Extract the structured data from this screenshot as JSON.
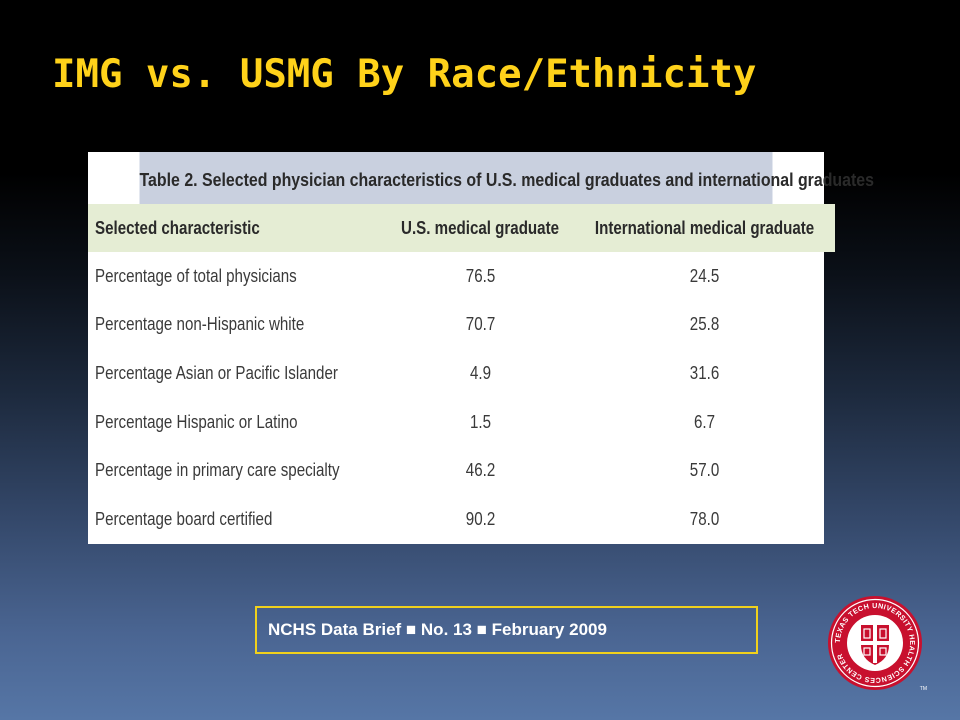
{
  "slide": {
    "title": "IMG vs. USMG By Race/Ethnicity",
    "source": "NCHS Data Brief ■ No. 13 ■ February 2009"
  },
  "table": {
    "caption": "Table 2. Selected physician characteristics of U.S. medical graduates and international graduates",
    "headers": [
      "Selected characteristic",
      "U.S. medical graduate",
      "International medical graduate"
    ],
    "rows": [
      [
        "Percentage of total physicians",
        "76.5",
        "24.5"
      ],
      [
        "Percentage non-Hispanic white",
        "70.7",
        "25.8"
      ],
      [
        "Percentage Asian or Pacific Islander",
        "4.9",
        "31.6"
      ],
      [
        "Percentage Hispanic or Latino",
        "1.5",
        "6.7"
      ],
      [
        "Percentage in primary care specialty",
        "46.2",
        "57.0"
      ],
      [
        "Percentage board certified",
        "90.2",
        "78.0"
      ]
    ]
  },
  "logo": {
    "ring_text": "TEXAS TECH UNIVERSITY HEALTH SCIENCES CENTER",
    "tm": "TM"
  },
  "colors": {
    "title": "#ffd21a",
    "caption_bg": "#c9d0df",
    "header_bg": "#e5edd4",
    "source_border": "#f0d11c",
    "logo_red": "#c8102e"
  }
}
